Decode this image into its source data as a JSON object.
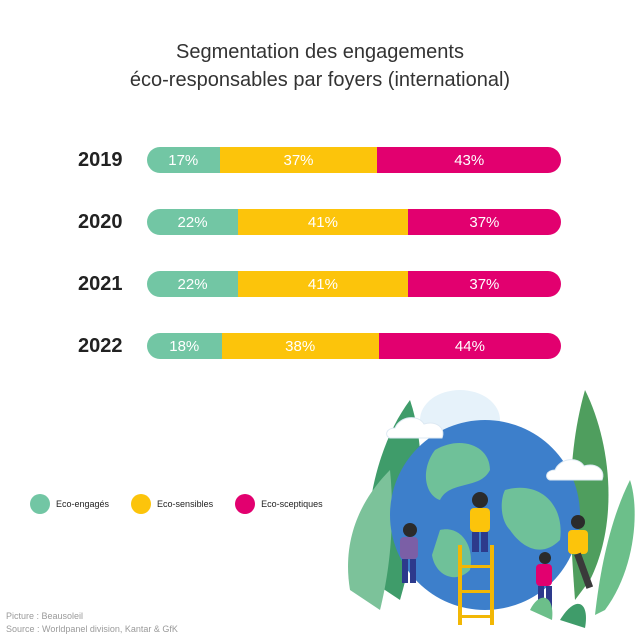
{
  "title_line1": "Segmentation des engagements",
  "title_line2": "éco-responsables par foyers (international)",
  "colors": {
    "eco_engages": "#72c6a4",
    "eco_sensibles": "#fcc40b",
    "eco_sceptiques": "#e2006f"
  },
  "chart_data": {
    "type": "bar",
    "orientation": "horizontal-stacked-100",
    "categories": [
      "2019",
      "2020",
      "2021",
      "2022"
    ],
    "series": [
      {
        "name": "Eco-engagés",
        "values": [
          17,
          22,
          22,
          18
        ],
        "labels": [
          "17%",
          "22%",
          "22%",
          "18%"
        ]
      },
      {
        "name": "Eco-sensibles",
        "values": [
          37,
          41,
          41,
          38
        ],
        "labels": [
          "37%",
          "41%",
          "41%",
          "38%"
        ]
      },
      {
        "name": "Eco-sceptiques",
        "values": [
          43,
          37,
          37,
          44
        ],
        "labels": [
          "43%",
          "37%",
          "37%",
          "44%"
        ]
      }
    ],
    "legend_position": "bottom-left"
  },
  "legend": [
    "Eco-engagés",
    "Eco-sensibles",
    "Eco-sceptiques"
  ],
  "footer": {
    "picture": "Picture : Beausoleil",
    "source": "Source : Worldpanel division, Kantar & GfK"
  }
}
